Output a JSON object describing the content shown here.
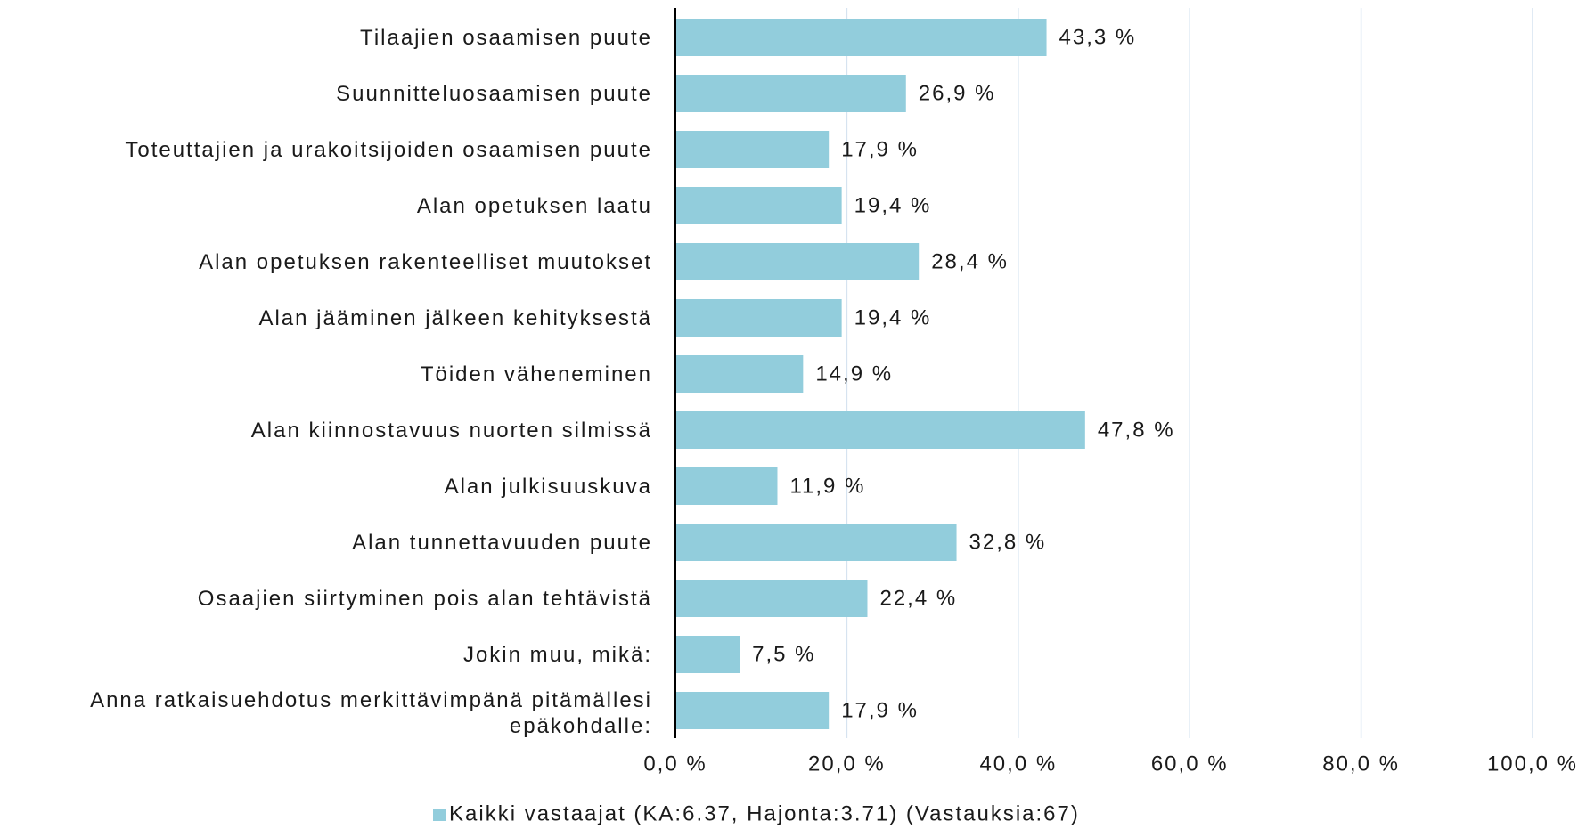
{
  "chart_data": {
    "type": "bar",
    "orientation": "horizontal",
    "categories": [
      "Tilaajien osaamisen puute",
      "Suunnitteluosaamisen puute",
      "Toteuttajien ja urakoitsijoiden osaamisen puute",
      "Alan opetuksen laatu",
      "Alan opetuksen rakenteelliset muutokset",
      "Alan jääminen jälkeen kehityksestä",
      "Töiden väheneminen",
      "Alan kiinnostavuus nuorten silmissä",
      "Alan julkisuuskuva",
      "Alan tunnettavuuden puute",
      "Osaajien siirtyminen pois alan tehtävistä",
      "Jokin muu, mikä:",
      "Anna ratkaisuehdotus merkittävimpänä pitämällesi epäkohdalle:"
    ],
    "series": [
      {
        "name": "Kaikki vastaajat (KA:6.37, Hajonta:3.71) (Vastauksia:67)",
        "color": "#92cddc",
        "values": [
          43.3,
          26.9,
          17.9,
          19.4,
          28.4,
          19.4,
          14.9,
          47.8,
          11.9,
          32.8,
          22.4,
          7.5,
          17.9
        ],
        "value_labels": [
          "43,3 %",
          "26,9 %",
          "17,9 %",
          "19,4 %",
          "28,4 %",
          "19,4 %",
          "14,9 %",
          "47,8 %",
          "11,9 %",
          "32,8 %",
          "22,4 %",
          "7,5 %",
          "17,9 %"
        ]
      }
    ],
    "xlim": [
      0,
      100
    ],
    "xticks": [
      {
        "value": 0,
        "label": "0,0 %"
      },
      {
        "value": 20,
        "label": "20,0 %"
      },
      {
        "value": 40,
        "label": "40,0 %"
      },
      {
        "value": 60,
        "label": "60,0 %"
      },
      {
        "value": 80,
        "label": "80,0 %"
      },
      {
        "value": 100,
        "label": "100,0 %"
      }
    ],
    "grid": true,
    "legend": "bottom"
  }
}
